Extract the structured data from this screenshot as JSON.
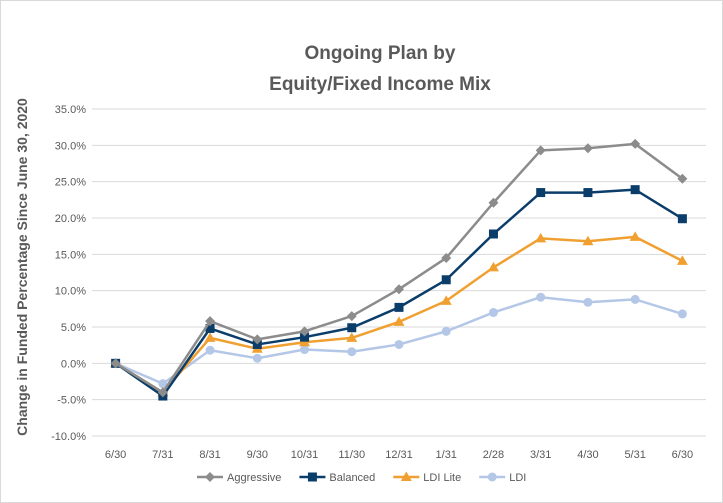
{
  "chart_data": {
    "type": "line",
    "title_lines": [
      "Ongoing Plan by",
      "Equity/Fixed Income Mix"
    ],
    "xlabel": "",
    "ylabel": "Change in Funded Percentage Since June 30, 2020",
    "ylim": [
      -10,
      35
    ],
    "ytick_step": 5,
    "ytick_labels": [
      "-10.0%",
      "-5.0%",
      "0.0%",
      "5.0%",
      "10.0%",
      "15.0%",
      "20.0%",
      "25.0%",
      "30.0%",
      "35.0%"
    ],
    "categories": [
      "6/30",
      "7/31",
      "8/31",
      "9/30",
      "10/31",
      "11/30",
      "12/31",
      "1/31",
      "2/28",
      "3/31",
      "4/30",
      "5/31",
      "6/30"
    ],
    "grid": true,
    "legend_position": "bottom",
    "series": [
      {
        "name": "Aggressive",
        "color": "#8c8c8c",
        "marker": "diamond",
        "values": [
          0.0,
          -4.0,
          5.8,
          3.3,
          4.4,
          6.5,
          10.2,
          14.5,
          22.1,
          29.3,
          29.6,
          30.2,
          25.4
        ]
      },
      {
        "name": "Balanced",
        "color": "#0b3d6b",
        "marker": "square",
        "values": [
          0.0,
          -4.5,
          4.8,
          2.6,
          3.6,
          4.9,
          7.7,
          11.5,
          17.8,
          23.5,
          23.5,
          23.9,
          19.9
        ]
      },
      {
        "name": "LDI Lite",
        "color": "#f0a030",
        "marker": "triangle",
        "values": [
          0.0,
          -4.0,
          3.5,
          2.0,
          2.9,
          3.5,
          5.7,
          8.6,
          13.2,
          17.2,
          16.8,
          17.4,
          14.1
        ]
      },
      {
        "name": "LDI",
        "color": "#b4c7e7",
        "marker": "circle",
        "values": [
          0.0,
          -2.8,
          1.8,
          0.7,
          1.9,
          1.6,
          2.6,
          4.4,
          7.0,
          9.1,
          8.4,
          8.8,
          6.8
        ]
      }
    ]
  }
}
